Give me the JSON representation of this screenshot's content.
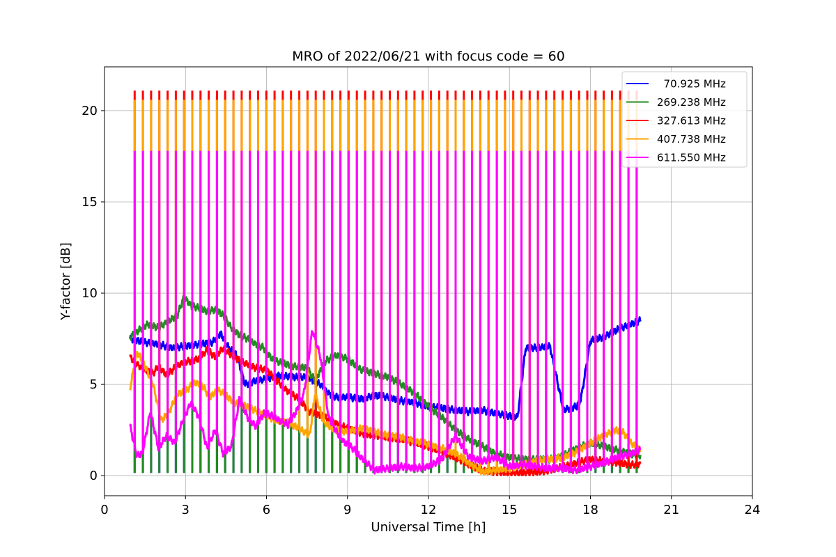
{
  "chart_data": {
    "type": "line",
    "title": "MRO of 2022/06/21 with focus code = 60",
    "xlabel": "Universal Time [h]",
    "ylabel": "Y-factor [dB]",
    "xlim": [
      0,
      24
    ],
    "ylim": [
      -1.1,
      22.4
    ],
    "xticks": [
      0,
      3,
      6,
      9,
      12,
      15,
      18,
      21,
      24
    ],
    "xtick_labels": [
      "0",
      "3",
      "6",
      "9",
      "12",
      "15",
      "18",
      "21",
      "24"
    ],
    "yticks": [
      0,
      5,
      10,
      15,
      20
    ],
    "ytick_labels": [
      "0",
      "5",
      "10",
      "15",
      "20"
    ],
    "grid": true,
    "legend_position": "top-right",
    "pulses": {
      "x_start": 0.95,
      "x_end": 19.85,
      "count": 62,
      "spike_peaks": {
        "327.613 MHz": 21.1,
        "407.738 MHz": 20.6,
        "611.550 MHz": 17.8
      }
    },
    "series": [
      {
        "name": "  70.925 MHz",
        "color": "#0000ff",
        "x": [
          0.95,
          1.5,
          2.0,
          2.5,
          3.0,
          3.5,
          4.0,
          4.3,
          4.6,
          4.9,
          5.2,
          5.6,
          6.0,
          6.5,
          7.0,
          7.5,
          8.0,
          8.3,
          8.6,
          9.0,
          9.5,
          10.0,
          10.5,
          11.0,
          11.5,
          12.0,
          12.5,
          13.0,
          13.5,
          14.0,
          14.5,
          14.9,
          15.3,
          15.6,
          16.0,
          16.5,
          17.0,
          17.5,
          17.65,
          18.0,
          18.5,
          19.0,
          19.5,
          19.85
        ],
        "y": [
          7.5,
          7.3,
          7.2,
          7.0,
          7.1,
          7.2,
          7.3,
          7.8,
          7.0,
          6.6,
          5.0,
          5.2,
          5.3,
          5.5,
          5.4,
          5.4,
          5.0,
          4.5,
          4.3,
          4.3,
          4.2,
          4.4,
          4.3,
          4.1,
          4.0,
          3.8,
          3.7,
          3.6,
          3.5,
          3.6,
          3.4,
          3.3,
          3.2,
          7.0,
          7.0,
          7.1,
          3.6,
          3.8,
          4.2,
          7.4,
          7.6,
          8.0,
          8.3,
          8.5
        ]
      },
      {
        "name": "269.238 MHz",
        "color": "#228b22",
        "x": [
          0.95,
          1.3,
          1.6,
          2.0,
          2.4,
          2.7,
          2.95,
          3.2,
          3.5,
          3.8,
          4.1,
          4.4,
          4.7,
          5.0,
          5.3,
          5.6,
          5.9,
          6.2,
          6.5,
          7.0,
          7.5,
          7.8,
          8.2,
          8.6,
          9.0,
          9.5,
          10.0,
          10.5,
          11.0,
          11.5,
          12.0,
          12.5,
          13.0,
          13.5,
          14.0,
          14.5,
          15.0,
          15.5,
          16.0,
          16.5,
          17.0,
          17.5,
          18.0,
          18.5,
          19.0,
          19.5,
          19.85
        ],
        "y": [
          7.6,
          8.0,
          8.3,
          8.1,
          8.5,
          8.8,
          9.8,
          9.3,
          9.2,
          9.0,
          9.1,
          8.8,
          8.1,
          7.7,
          7.5,
          7.2,
          7.0,
          6.4,
          6.2,
          6.0,
          5.9,
          5.2,
          6.3,
          6.6,
          6.4,
          5.8,
          5.6,
          5.4,
          5.0,
          4.5,
          3.8,
          3.2,
          2.5,
          2.0,
          1.6,
          1.2,
          1.0,
          0.9,
          0.9,
          0.9,
          1.1,
          1.5,
          1.8,
          1.6,
          1.4,
          1.2,
          1.1
        ]
      },
      {
        "name": "327.613 MHz",
        "color": "#ff0000",
        "x": [
          0.95,
          1.2,
          1.5,
          1.8,
          2.0,
          2.3,
          2.6,
          2.9,
          3.2,
          3.5,
          3.8,
          4.1,
          4.4,
          4.7,
          5.0,
          5.3,
          5.6,
          6.0,
          6.4,
          6.8,
          7.2,
          7.6,
          8.0,
          8.4,
          8.8,
          9.2,
          9.6,
          10.0,
          10.5,
          11.0,
          11.5,
          12.0,
          12.5,
          13.0,
          13.5,
          14.0,
          14.5,
          15.0,
          15.5,
          16.0,
          16.5,
          17.0,
          17.5,
          18.0,
          18.5,
          19.0,
          19.5,
          19.85
        ],
        "y": [
          6.5,
          6.1,
          5.8,
          5.6,
          6.0,
          5.5,
          5.9,
          6.2,
          6.3,
          6.4,
          6.9,
          6.5,
          7.0,
          6.6,
          6.3,
          6.1,
          5.9,
          5.8,
          5.2,
          4.6,
          4.2,
          3.5,
          3.3,
          3.0,
          2.7,
          2.5,
          2.3,
          2.2,
          2.1,
          2.0,
          1.8,
          1.6,
          1.3,
          1.0,
          0.6,
          0.3,
          0.2,
          0.15,
          0.15,
          0.2,
          0.3,
          0.5,
          0.7,
          0.9,
          0.8,
          0.7,
          0.6,
          0.6
        ]
      },
      {
        "name": "407.738 MHz",
        "color": "#ffa500",
        "x": [
          0.95,
          1.2,
          1.5,
          1.8,
          2.1,
          2.4,
          2.7,
          3.0,
          3.3,
          3.6,
          3.9,
          4.2,
          4.5,
          4.8,
          5.1,
          5.4,
          5.7,
          6.0,
          6.4,
          6.8,
          7.2,
          7.6,
          7.8,
          8.1,
          8.4,
          8.8,
          9.2,
          9.6,
          10.0,
          10.5,
          11.0,
          11.5,
          12.0,
          12.5,
          13.0,
          13.5,
          14.0,
          14.5,
          15.0,
          15.5,
          16.0,
          16.5,
          17.0,
          17.5,
          18.0,
          18.5,
          18.9,
          19.2,
          19.5,
          19.85
        ],
        "y": [
          4.8,
          6.8,
          6.0,
          5.0,
          3.0,
          3.5,
          4.5,
          4.6,
          5.1,
          5.0,
          4.3,
          4.7,
          4.4,
          4.0,
          3.9,
          3.7,
          3.5,
          3.3,
          3.0,
          2.9,
          2.6,
          2.2,
          4.5,
          3.0,
          2.6,
          2.4,
          2.5,
          2.6,
          2.4,
          2.2,
          2.1,
          1.9,
          1.7,
          1.5,
          1.2,
          0.7,
          0.2,
          0.3,
          0.4,
          0.6,
          0.8,
          0.9,
          1.0,
          1.3,
          1.8,
          2.2,
          2.5,
          2.4,
          1.8,
          1.4
        ]
      },
      {
        "name": "611.550 MHz",
        "color": "#ff00ff",
        "x": [
          0.95,
          1.2,
          1.4,
          1.7,
          2.0,
          2.3,
          2.6,
          2.9,
          3.2,
          3.5,
          3.8,
          4.1,
          4.4,
          4.7,
          5.0,
          5.3,
          5.6,
          5.9,
          6.2,
          6.5,
          6.8,
          7.1,
          7.4,
          7.7,
          8.0,
          8.3,
          8.6,
          8.9,
          9.2,
          9.5,
          10.0,
          10.5,
          11.0,
          11.5,
          12.0,
          12.5,
          13.0,
          13.5,
          14.0,
          14.5,
          15.0,
          15.5,
          16.0,
          16.5,
          17.0,
          17.5,
          18.0,
          18.5,
          19.0,
          19.5,
          19.85
        ],
        "y": [
          2.7,
          1.1,
          1.2,
          3.5,
          1.5,
          2.2,
          1.8,
          3.0,
          4.0,
          3.2,
          1.5,
          2.5,
          1.2,
          1.6,
          4.2,
          3.2,
          2.7,
          3.4,
          3.3,
          3.0,
          2.8,
          3.5,
          4.6,
          8.0,
          6.5,
          3.2,
          2.4,
          1.8,
          1.5,
          1.0,
          0.3,
          0.4,
          0.5,
          0.4,
          0.5,
          0.9,
          2.2,
          1.0,
          0.8,
          1.0,
          0.5,
          0.6,
          0.5,
          0.4,
          0.4,
          0.3,
          0.5,
          0.7,
          1.0,
          1.2,
          1.4
        ]
      }
    ]
  }
}
